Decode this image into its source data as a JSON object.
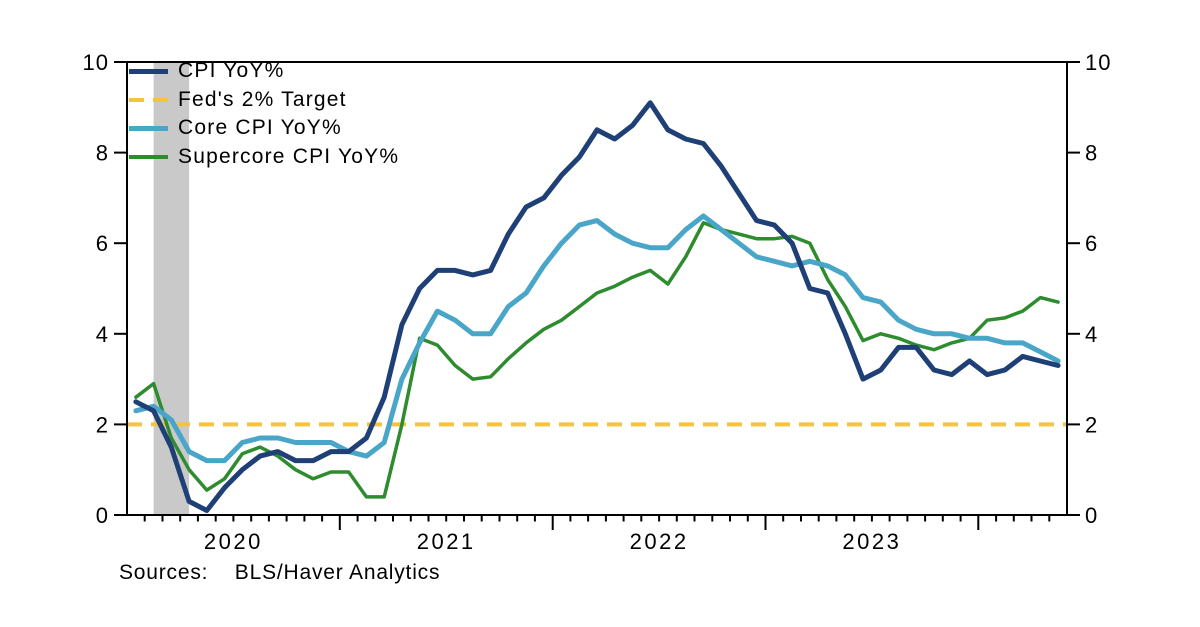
{
  "chart_data": {
    "type": "line",
    "title": "",
    "xlabel": "",
    "ylabel": "",
    "ylim": [
      0,
      10
    ],
    "y_ticks": [
      0,
      2,
      4,
      6,
      8,
      10
    ],
    "y_axis_both_sides": true,
    "grid": false,
    "axis_color": "#000000",
    "x_unit": "month",
    "x_start": "2020-01",
    "x_end": "2024-05",
    "x_year_labels": [
      "2020",
      "2021",
      "2022",
      "2023"
    ],
    "x_months": [
      "2020-01",
      "2020-02",
      "2020-03",
      "2020-04",
      "2020-05",
      "2020-06",
      "2020-07",
      "2020-08",
      "2020-09",
      "2020-10",
      "2020-11",
      "2020-12",
      "2021-01",
      "2021-02",
      "2021-03",
      "2021-04",
      "2021-05",
      "2021-06",
      "2021-07",
      "2021-08",
      "2021-09",
      "2021-10",
      "2021-11",
      "2021-12",
      "2022-01",
      "2022-02",
      "2022-03",
      "2022-04",
      "2022-05",
      "2022-06",
      "2022-07",
      "2022-08",
      "2022-09",
      "2022-10",
      "2022-11",
      "2022-12",
      "2023-01",
      "2023-02",
      "2023-03",
      "2023-04",
      "2023-05",
      "2023-06",
      "2023-07",
      "2023-08",
      "2023-09",
      "2023-10",
      "2023-11",
      "2023-12",
      "2024-01",
      "2024-02",
      "2024-03",
      "2024-04",
      "2024-05"
    ],
    "recession_band": {
      "from": "2020-02",
      "to": "2020-04",
      "color": "#c9c9c9"
    },
    "legend_position": "top-left",
    "series": [
      {
        "name": "CPI YoY%",
        "color": "#1f4076",
        "style": "solid",
        "width": 5,
        "z": 3,
        "values": [
          2.5,
          2.3,
          1.5,
          0.3,
          0.1,
          0.6,
          1.0,
          1.3,
          1.4,
          1.2,
          1.2,
          1.4,
          1.4,
          1.7,
          2.6,
          4.2,
          5.0,
          5.4,
          5.4,
          5.3,
          5.4,
          6.2,
          6.8,
          7.0,
          7.5,
          7.9,
          8.5,
          8.3,
          8.6,
          9.1,
          8.5,
          8.3,
          8.2,
          7.7,
          7.1,
          6.5,
          6.4,
          6.0,
          5.0,
          4.9,
          4.0,
          3.0,
          3.2,
          3.7,
          3.7,
          3.2,
          3.1,
          3.4,
          3.1,
          3.2,
          3.5,
          3.4,
          3.3
        ]
      },
      {
        "name": "Fed's 2% Target",
        "color": "#f6c33c",
        "style": "dashed",
        "width": 4,
        "z": 0,
        "constant_value": 2
      },
      {
        "name": "Core CPI YoY%",
        "color": "#4aa6c9",
        "style": "solid",
        "width": 5,
        "z": 2,
        "values": [
          2.3,
          2.4,
          2.1,
          1.4,
          1.2,
          1.2,
          1.6,
          1.7,
          1.7,
          1.6,
          1.6,
          1.6,
          1.4,
          1.3,
          1.6,
          3.0,
          3.8,
          4.5,
          4.3,
          4.0,
          4.0,
          4.6,
          4.9,
          5.5,
          6.0,
          6.4,
          6.5,
          6.2,
          6.0,
          5.9,
          5.9,
          6.3,
          6.6,
          6.3,
          6.0,
          5.7,
          5.6,
          5.5,
          5.6,
          5.5,
          5.3,
          4.8,
          4.7,
          4.3,
          4.1,
          4.0,
          4.0,
          3.9,
          3.9,
          3.8,
          3.8,
          3.6,
          3.4
        ]
      },
      {
        "name": "Supercore CPI YoY%",
        "color": "#2e8b2e",
        "style": "solid",
        "width": 3.5,
        "z": 1,
        "values": [
          2.6,
          2.9,
          1.7,
          1.0,
          0.55,
          0.8,
          1.35,
          1.5,
          1.3,
          1.0,
          0.8,
          0.95,
          0.95,
          0.4,
          0.4,
          2.0,
          3.9,
          3.75,
          3.3,
          3.0,
          3.05,
          3.45,
          3.8,
          4.1,
          4.3,
          4.6,
          4.9,
          5.05,
          5.25,
          5.4,
          5.1,
          5.7,
          6.45,
          6.3,
          6.2,
          6.1,
          6.1,
          6.15,
          6.0,
          5.2,
          4.6,
          3.85,
          4.0,
          3.9,
          3.75,
          3.65,
          3.8,
          3.9,
          4.3,
          4.35,
          4.5,
          4.8,
          4.7
        ]
      }
    ],
    "source_note": "Sources:    BLS/Haver Analytics"
  }
}
